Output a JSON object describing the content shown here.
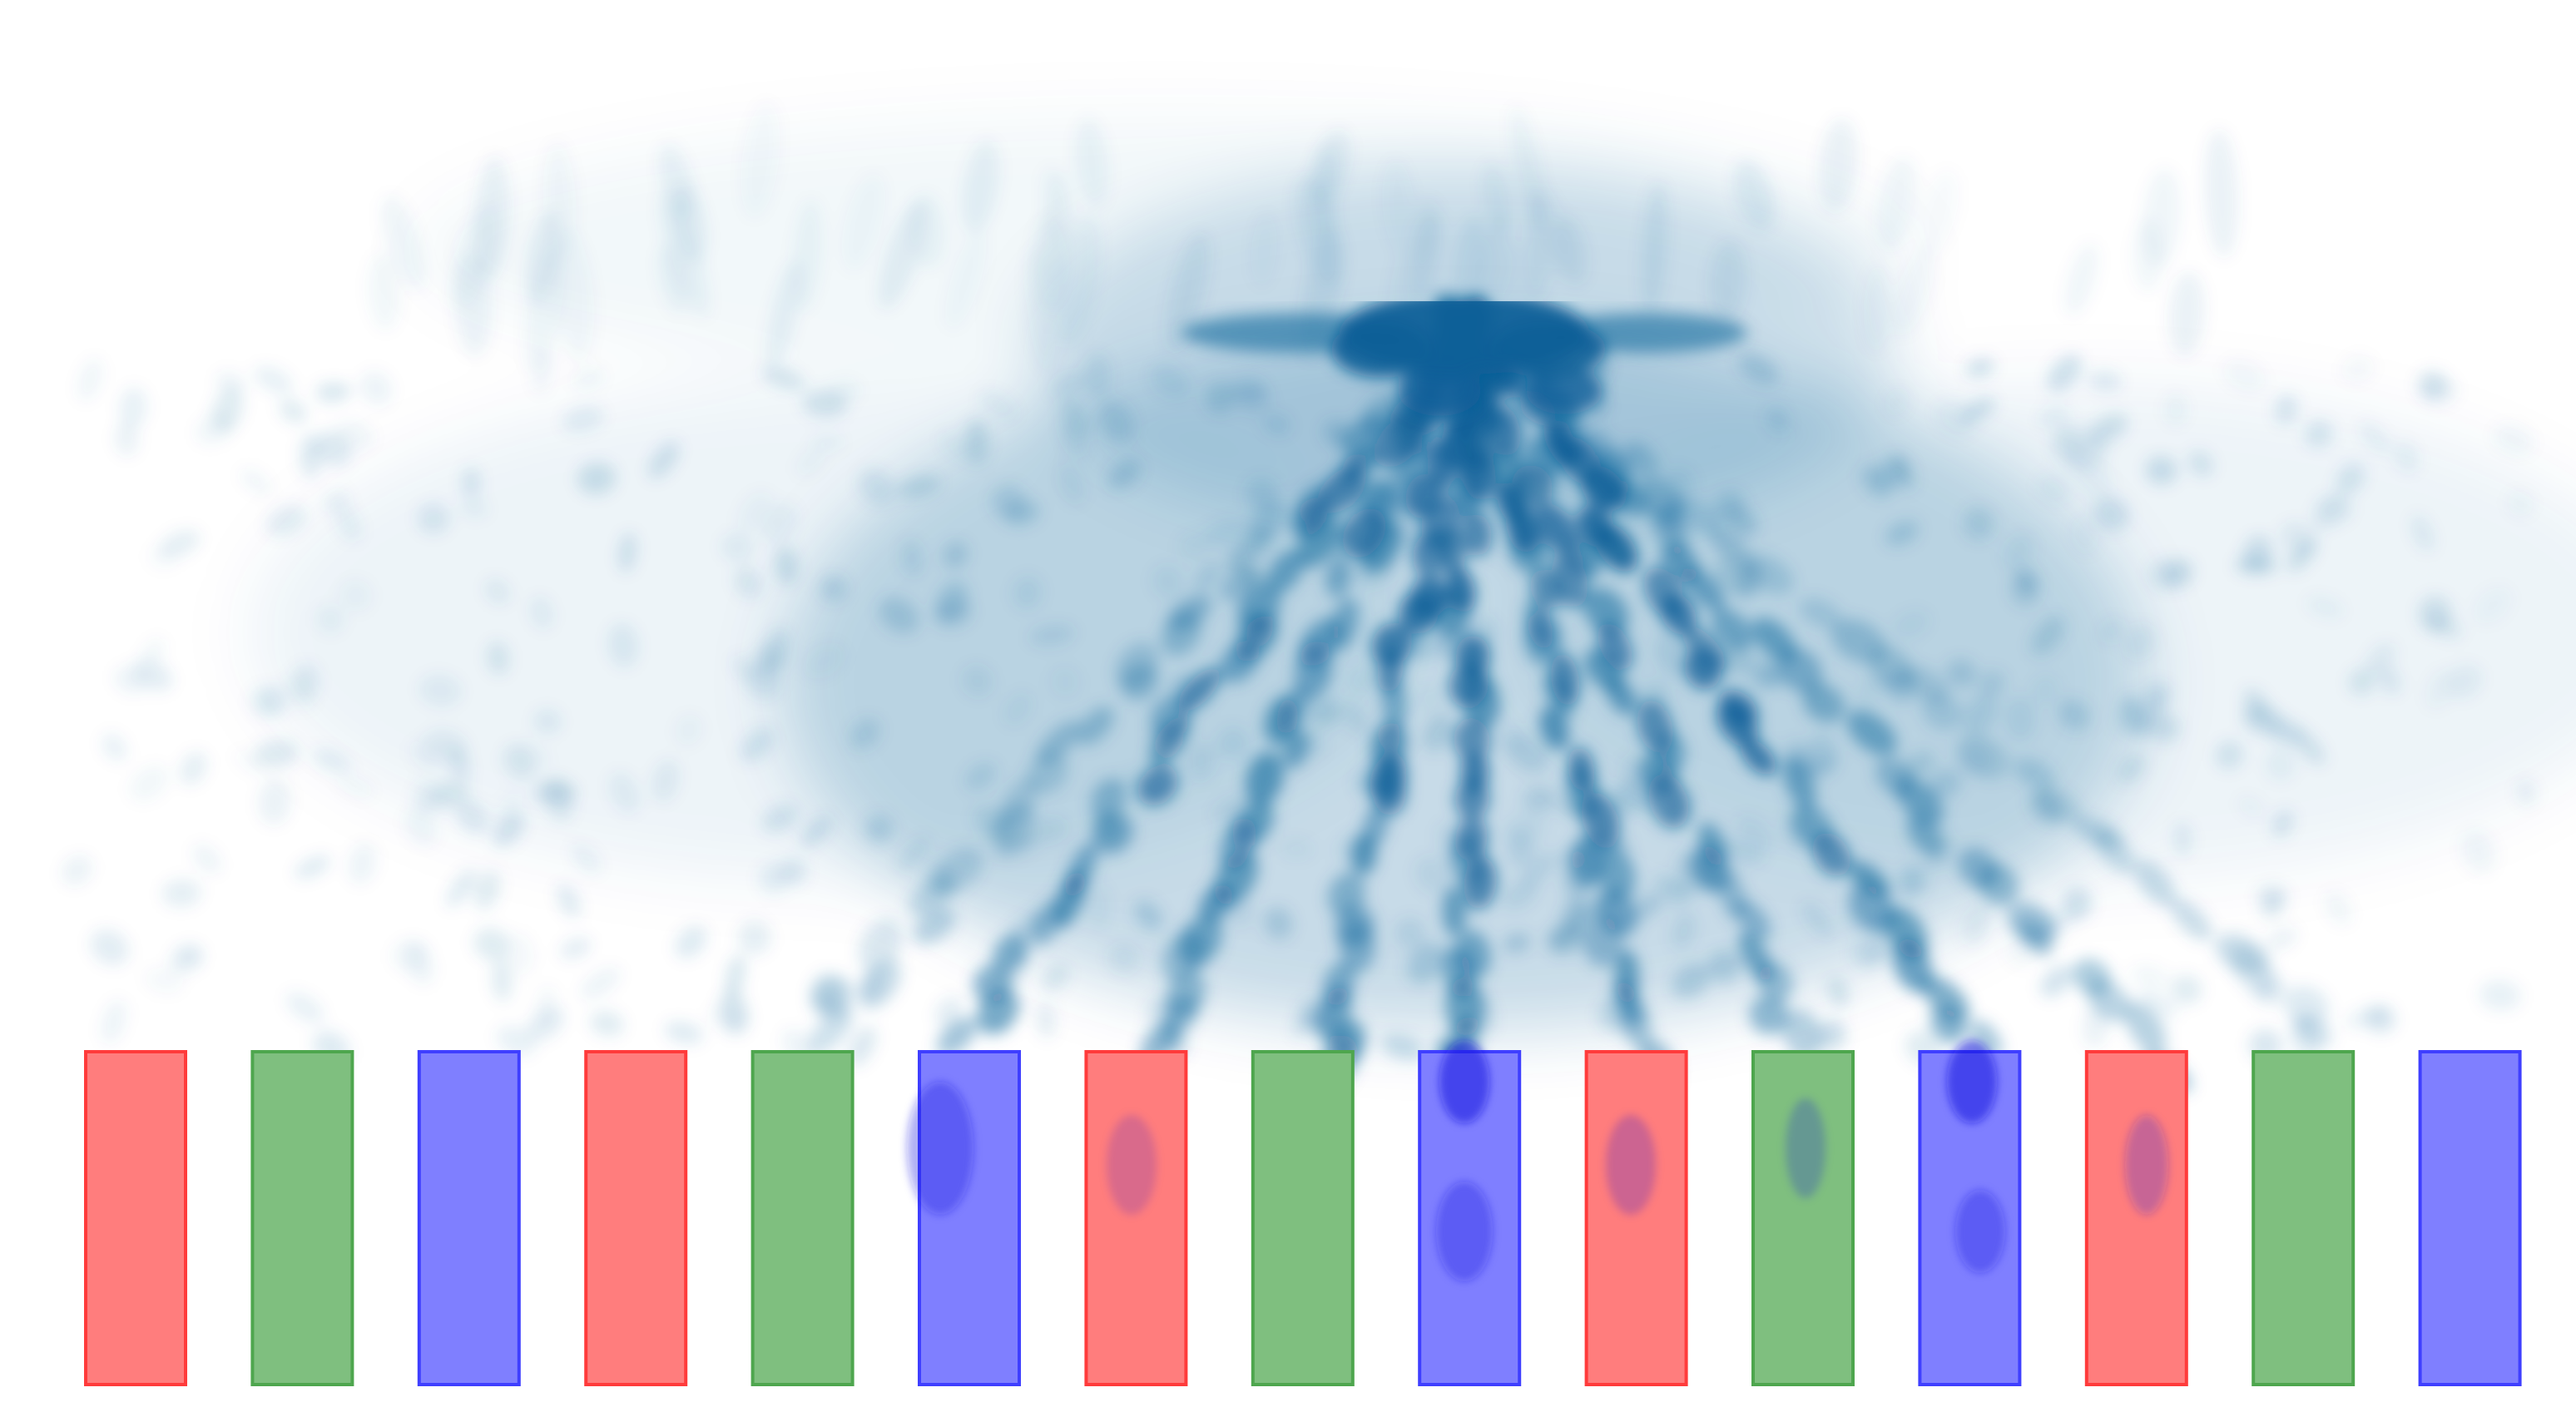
{
  "figure": {
    "intensity_color": "#0b5f98",
    "background_color": "#ffffff"
  },
  "element_row": {
    "count": 15,
    "pattern": [
      "red",
      "green",
      "blue"
    ],
    "colors": {
      "red": {
        "fill": "#ff7d7d",
        "stroke": "#ff3b3b"
      },
      "green": {
        "fill": "#7fbf7f",
        "stroke": "#4ea64e"
      },
      "blue": {
        "fill": "#7f7fff",
        "stroke": "#3f3fff"
      }
    }
  }
}
